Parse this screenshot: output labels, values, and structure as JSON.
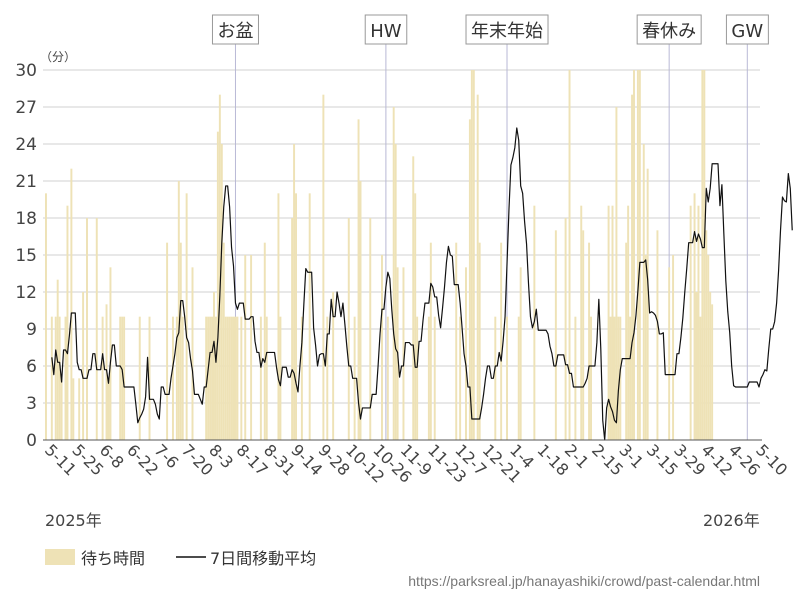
{
  "unit_label": "（分）",
  "year_start": "2025年",
  "year_end": "2026年",
  "source_url": "https://parksreal.jp/hanayashiki/crowd/past-calendar.html",
  "legend": {
    "bars_label": "待ち時間",
    "line_label": "7日間移動平均"
  },
  "colors": {
    "bar": "#eee2b6",
    "line": "#111111",
    "grid": "#d0d0d0",
    "event_line": "#b9b9d6"
  },
  "chart_data": {
    "type": "bar",
    "ylabel": "（分）",
    "ylim": [
      0,
      30
    ],
    "yticks": [
      0,
      3,
      6,
      9,
      12,
      15,
      18,
      21,
      24,
      27,
      30
    ],
    "x_start": "2025-05-10",
    "x_end": "2026-05-10",
    "xtick_labels": [
      "5-11",
      "5-25",
      "6-8",
      "6-22",
      "7-6",
      "7-20",
      "8-3",
      "8-17",
      "8-31",
      "9-14",
      "9-28",
      "10-12",
      "10-26",
      "11-9",
      "11-23",
      "12-7",
      "12-21",
      "1-4",
      "1-18",
      "2-1",
      "2-15",
      "3-1",
      "3-15",
      "3-29",
      "4-12",
      "4-26",
      "5-10"
    ],
    "events": [
      {
        "label": "お盆",
        "date": "2025-08-15"
      },
      {
        "label": "HW",
        "date": "2025-10-31"
      },
      {
        "label": "年末年始",
        "date": "2026-01-01"
      },
      {
        "label": "春休み",
        "date": "2026-03-25"
      },
      {
        "label": "GW",
        "date": "2026-05-04"
      }
    ],
    "series": [
      {
        "name": "待ち時間",
        "type": "bar",
        "values": [
          20,
          0,
          0,
          10,
          0,
          10,
          13,
          10,
          5,
          0,
          10,
          19,
          0,
          22,
          5,
          0,
          0,
          5,
          0,
          12,
          0,
          18,
          0,
          0,
          0,
          0,
          18,
          0,
          0,
          10,
          0,
          11,
          5,
          14,
          0,
          0,
          0,
          0,
          10,
          10,
          10,
          0,
          0,
          0,
          0,
          0,
          0,
          0,
          10,
          0,
          0,
          0,
          0,
          10,
          0,
          0,
          0,
          0,
          0,
          0,
          0,
          0,
          16,
          0,
          0,
          10,
          0,
          10,
          21,
          16,
          10,
          0,
          20,
          0,
          0,
          14,
          0,
          0,
          0,
          0,
          0,
          0,
          10,
          10,
          10,
          10,
          12,
          10,
          25,
          28,
          24,
          16,
          10,
          10,
          10,
          10,
          10,
          10,
          10,
          0,
          10,
          0,
          15,
          0,
          0,
          15,
          0,
          0,
          0,
          0,
          10,
          0,
          16,
          10,
          0,
          0,
          0,
          0,
          0,
          20,
          10,
          0,
          0,
          0,
          0,
          0,
          18,
          24,
          20,
          0,
          0,
          10,
          0,
          0,
          0,
          20,
          0,
          0,
          0,
          0,
          0,
          0,
          28,
          0,
          10,
          0,
          0,
          12,
          0,
          0,
          0,
          0,
          0,
          0,
          0,
          18,
          0,
          0,
          10,
          0,
          26,
          21,
          0,
          0,
          0,
          0,
          18,
          0,
          0,
          0,
          0,
          0,
          15,
          0,
          0,
          10,
          0,
          0,
          27,
          24,
          14,
          0,
          0,
          14,
          0,
          0,
          0,
          0,
          23,
          20,
          10,
          0,
          0,
          0,
          0,
          0,
          10,
          16,
          0,
          10,
          0,
          0,
          0,
          0,
          0,
          0,
          0,
          0,
          0,
          0,
          16,
          0,
          10,
          0,
          0,
          14,
          0,
          26,
          30,
          30,
          0,
          28,
          16,
          0,
          0,
          0,
          0,
          0,
          0,
          0,
          10,
          0,
          0,
          16,
          0,
          0,
          10,
          0,
          0,
          0,
          0,
          0,
          10,
          14,
          0,
          0,
          0,
          0,
          0,
          0,
          19,
          0,
          0,
          0,
          0,
          0,
          0,
          0,
          0,
          0,
          0,
          17,
          0,
          0,
          0,
          0,
          18,
          0,
          30,
          0,
          0,
          10,
          0,
          0,
          19,
          17,
          0,
          0,
          16,
          10,
          0,
          0,
          0,
          0,
          0,
          0,
          0,
          0,
          19,
          10,
          19,
          10,
          27,
          10,
          10,
          0,
          0,
          16,
          19,
          10,
          28,
          30,
          0,
          30,
          30,
          0,
          24,
          15,
          22,
          0,
          0,
          0,
          0,
          17,
          0,
          0,
          0,
          0,
          0,
          14,
          0,
          15,
          0,
          0,
          0,
          0,
          0,
          0,
          0,
          0,
          19,
          0,
          20,
          12,
          19,
          10,
          30,
          30,
          17,
          15,
          12,
          11
        ]
      },
      {
        "name": "7日間移動平均",
        "type": "line",
        "values": [
          null,
          null,
          null,
          6.7,
          5.3,
          7.3,
          6.3,
          6.3,
          4.7,
          7.3,
          7.3,
          7.0,
          8.5,
          10.3,
          10.3,
          10.3,
          6.3,
          5.7,
          5.7,
          5.0,
          5.0,
          5.0,
          5.7,
          5.7,
          7.0,
          7.0,
          5.7,
          5.7,
          5.7,
          7.0,
          5.7,
          5.7,
          4.6,
          6.3,
          7.7,
          7.7,
          6.0,
          6.0,
          6.0,
          5.7,
          4.3,
          4.3,
          4.3,
          4.3,
          4.3,
          4.3,
          2.9,
          1.4,
          1.8,
          2.1,
          2.5,
          3.5,
          6.7,
          3.3,
          3.3,
          3.3,
          2.9,
          2.1,
          1.7,
          4.3,
          4.3,
          3.7,
          3.7,
          3.7,
          5.0,
          6.0,
          7.0,
          8.3,
          8.7,
          11.3,
          11.3,
          10.0,
          8.3,
          7.9,
          6.6,
          5.6,
          3.7,
          3.7,
          3.7,
          3.3,
          2.9,
          4.3,
          4.3,
          5.7,
          7.1,
          7.1,
          8.0,
          6.3,
          8.3,
          11.7,
          16.0,
          18.9,
          20.6,
          20.6,
          18.9,
          15.6,
          14.1,
          11.1,
          10.6,
          11.1,
          11.1,
          11.1,
          9.8,
          9.8,
          9.8,
          10.0,
          10.0,
          8.0,
          7.1,
          7.1,
          5.9,
          6.6,
          6.3,
          7.1,
          7.1,
          7.1,
          7.1,
          7.1,
          5.9,
          4.9,
          4.4,
          5.9,
          5.9,
          5.9,
          5.1,
          5.1,
          5.7,
          5.4,
          4.6,
          3.9,
          6.0,
          7.9,
          11.0,
          13.9,
          13.6,
          13.6,
          13.6,
          9.1,
          7.7,
          6.0,
          6.9,
          7.0,
          7.0,
          6.0,
          8.6,
          8.6,
          11.4,
          10.0,
          10.0,
          12.0,
          11.1,
          10.0,
          11.1,
          9.4,
          7.6,
          6.0,
          6.0,
          5.0,
          5.0,
          5.0,
          3.0,
          1.7,
          2.6,
          2.6,
          2.6,
          2.6,
          2.6,
          3.7,
          3.7,
          3.7,
          6.0,
          8.6,
          10.6,
          10.6,
          12.4,
          13.6,
          13.1,
          10.6,
          8.6,
          7.4,
          7.1,
          5.1,
          6.0,
          6.0,
          7.9,
          7.9,
          7.9,
          7.7,
          7.7,
          5.9,
          5.9,
          8.0,
          8.0,
          9.7,
          11.1,
          11.1,
          11.1,
          12.7,
          12.4,
          11.6,
          11.6,
          10.1,
          9.1,
          10.7,
          12.4,
          14.4,
          15.7,
          15.0,
          14.9,
          12.6,
          12.6,
          12.6,
          11.1,
          9.1,
          7.0,
          6.0,
          4.3,
          4.3,
          1.7,
          1.7,
          1.7,
          1.7,
          1.7,
          2.6,
          3.7,
          5.0,
          6.0,
          6.0,
          5.0,
          5.0,
          6.0,
          6.0,
          7.1,
          6.4,
          8.0,
          10.0,
          14.3,
          18.7,
          22.3,
          22.9,
          23.7,
          25.3,
          24.3,
          20.6,
          20.0,
          17.7,
          15.9,
          12.7,
          10.0,
          9.1,
          9.6,
          10.6,
          8.9,
          8.9,
          8.9,
          8.9,
          8.9,
          8.6,
          7.6,
          7.0,
          6.0,
          6.0,
          6.9,
          6.9,
          6.9,
          6.9,
          6.1,
          6.1,
          5.4,
          5.4,
          4.3,
          4.3,
          4.3,
          4.3,
          4.3,
          4.3,
          4.6,
          5.0,
          6.0,
          6.0,
          6.0,
          6.0,
          7.9,
          11.4,
          7.4,
          1.6,
          0,
          2.6,
          3.3,
          2.7,
          2.3,
          1.6,
          1.4,
          4.0,
          5.7,
          6.6,
          6.6,
          6.6,
          6.6,
          6.6,
          7.9,
          8.7,
          10.1,
          12.1,
          14.4,
          14.4,
          14.4,
          14.6,
          13.0,
          10.3,
          10.4,
          10.3,
          10.1,
          9.6,
          8.6,
          8.6,
          8.7,
          5.3,
          5.3,
          5.3,
          5.3,
          5.3,
          5.3,
          7.0,
          7.0,
          8.3,
          9.9,
          12.0,
          13.9,
          16.0,
          16.0,
          16.0,
          16.9,
          16.1,
          16.7,
          16.3,
          15.6,
          15.6,
          20.4,
          19.3,
          20.4,
          22.4,
          22.4,
          22.4,
          22.4,
          19.0,
          20.7,
          16.7,
          12.9,
          10.4,
          8.7,
          6.0,
          4.4,
          4.3,
          4.3,
          4.3,
          4.3,
          4.3,
          4.3,
          4.3,
          4.7,
          4.7,
          4.7,
          4.7,
          4.7,
          4.3,
          5.0,
          5.3,
          5.7,
          5.6,
          7.4,
          9.0,
          9.0,
          9.6,
          11.1,
          13.7,
          17.0,
          19.7,
          19.4,
          19.3,
          21.6,
          20.4,
          17.0
        ]
      }
    ]
  }
}
